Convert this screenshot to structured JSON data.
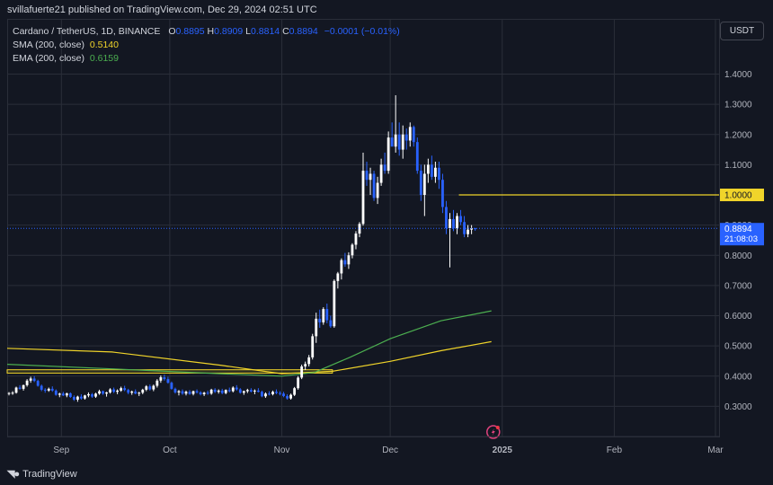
{
  "header": {
    "publisher_line": "svillafuerte21 published on TradingView.com, Dec 29, 2024 02:51 UTC"
  },
  "legend": {
    "symbol": "Cardano / TetherUS, 1D, BINANCE",
    "o_label": "O",
    "o_value": "0.8895",
    "h_label": "H",
    "h_value": "0.8909",
    "l_label": "L",
    "l_value": "0.8814",
    "c_label": "C",
    "c_value": "0.8894",
    "change": "−0.0001 (−0.01%)",
    "sma_label": "SMA (200, close)",
    "sma_value": "0.5140",
    "ema_label": "EMA (200, close)",
    "ema_value": "0.6159"
  },
  "currency_button": "USDT",
  "footer": {
    "brand": "TradingView"
  },
  "colors": {
    "up": "#ffffff",
    "down": "#2962ff",
    "sma": "#f0d42a",
    "ema": "#4caf50",
    "background": "#131722",
    "grid": "#2a2e39",
    "price_tag": "#2962ff",
    "level_tag": "#f0d42a"
  },
  "chart_data": {
    "type": "candlestick",
    "y_axis": {
      "ticks": [
        "1.4000",
        "1.3000",
        "1.2000",
        "1.1000",
        "1.0000",
        "0.9000",
        "0.8000",
        "0.7000",
        "0.6000",
        "0.5000",
        "0.4000",
        "0.3000"
      ],
      "tick_values": [
        1.4,
        1.3,
        1.2,
        1.1,
        1.0,
        0.9,
        0.8,
        0.7,
        0.6,
        0.5,
        0.4,
        0.3
      ],
      "range": [
        0.2,
        1.58
      ]
    },
    "x_axis": {
      "labels": [
        "Sep",
        "Oct",
        "Nov",
        "Dec",
        "2025",
        "Feb",
        "Mar"
      ],
      "label_dates": [
        "2024-09-01",
        "2024-10-01",
        "2024-11-01",
        "2024-12-01",
        "2025-01-01",
        "2025-02-01",
        "2025-03-01"
      ],
      "range": [
        "2024-08-17",
        "2025-03-02"
      ]
    },
    "last_price": {
      "value": 0.8894,
      "label": "0.8894",
      "countdown": "21:08:03"
    },
    "horizontal_level": {
      "value": 1.0,
      "label": "1.0000",
      "from_date": "2024-12-20"
    },
    "range_box": {
      "from_date": "2024-08-17",
      "to_date": "2024-11-15",
      "top": 0.421,
      "bottom": 0.41
    },
    "candles_ohlc_daily_from_2024-08-17": [
      [
        0.342,
        0.347,
        0.336,
        0.344
      ],
      [
        0.344,
        0.35,
        0.338,
        0.345
      ],
      [
        0.345,
        0.365,
        0.342,
        0.362
      ],
      [
        0.362,
        0.37,
        0.355,
        0.358
      ],
      [
        0.358,
        0.372,
        0.352,
        0.37
      ],
      [
        0.37,
        0.39,
        0.365,
        0.385
      ],
      [
        0.385,
        0.398,
        0.378,
        0.392
      ],
      [
        0.392,
        0.4,
        0.38,
        0.384
      ],
      [
        0.384,
        0.388,
        0.365,
        0.368
      ],
      [
        0.368,
        0.372,
        0.35,
        0.355
      ],
      [
        0.355,
        0.36,
        0.345,
        0.352
      ],
      [
        0.352,
        0.362,
        0.348,
        0.358
      ],
      [
        0.358,
        0.366,
        0.348,
        0.352
      ],
      [
        0.352,
        0.356,
        0.335,
        0.338
      ],
      [
        0.338,
        0.345,
        0.33,
        0.342
      ],
      [
        0.342,
        0.348,
        0.334,
        0.336
      ],
      [
        0.336,
        0.345,
        0.33,
        0.343
      ],
      [
        0.343,
        0.346,
        0.328,
        0.331
      ],
      [
        0.331,
        0.336,
        0.318,
        0.322
      ],
      [
        0.322,
        0.335,
        0.315,
        0.332
      ],
      [
        0.332,
        0.34,
        0.322,
        0.326
      ],
      [
        0.326,
        0.338,
        0.322,
        0.336
      ],
      [
        0.336,
        0.346,
        0.33,
        0.34
      ],
      [
        0.34,
        0.344,
        0.328,
        0.332
      ],
      [
        0.332,
        0.345,
        0.328,
        0.342
      ],
      [
        0.342,
        0.355,
        0.338,
        0.35
      ],
      [
        0.35,
        0.352,
        0.338,
        0.342
      ],
      [
        0.342,
        0.348,
        0.332,
        0.346
      ],
      [
        0.346,
        0.36,
        0.342,
        0.356
      ],
      [
        0.356,
        0.362,
        0.344,
        0.348
      ],
      [
        0.348,
        0.356,
        0.34,
        0.352
      ],
      [
        0.352,
        0.365,
        0.348,
        0.36
      ],
      [
        0.36,
        0.368,
        0.35,
        0.354
      ],
      [
        0.354,
        0.358,
        0.34,
        0.345
      ],
      [
        0.345,
        0.352,
        0.338,
        0.349
      ],
      [
        0.349,
        0.356,
        0.34,
        0.342
      ],
      [
        0.342,
        0.348,
        0.334,
        0.345
      ],
      [
        0.345,
        0.358,
        0.34,
        0.355
      ],
      [
        0.355,
        0.37,
        0.35,
        0.366
      ],
      [
        0.366,
        0.372,
        0.352,
        0.356
      ],
      [
        0.356,
        0.372,
        0.35,
        0.368
      ],
      [
        0.368,
        0.39,
        0.362,
        0.385
      ],
      [
        0.385,
        0.402,
        0.378,
        0.396
      ],
      [
        0.396,
        0.405,
        0.385,
        0.39
      ],
      [
        0.39,
        0.398,
        0.375,
        0.378
      ],
      [
        0.378,
        0.382,
        0.355,
        0.358
      ],
      [
        0.358,
        0.362,
        0.342,
        0.346
      ],
      [
        0.346,
        0.354,
        0.336,
        0.35
      ],
      [
        0.35,
        0.356,
        0.338,
        0.342
      ],
      [
        0.342,
        0.352,
        0.336,
        0.348
      ],
      [
        0.348,
        0.354,
        0.338,
        0.341
      ],
      [
        0.341,
        0.352,
        0.336,
        0.35
      ],
      [
        0.35,
        0.356,
        0.342,
        0.346
      ],
      [
        0.346,
        0.35,
        0.336,
        0.34
      ],
      [
        0.34,
        0.348,
        0.334,
        0.345
      ],
      [
        0.345,
        0.352,
        0.338,
        0.342
      ],
      [
        0.342,
        0.358,
        0.338,
        0.355
      ],
      [
        0.355,
        0.36,
        0.344,
        0.348
      ],
      [
        0.348,
        0.356,
        0.342,
        0.352
      ],
      [
        0.352,
        0.358,
        0.34,
        0.344
      ],
      [
        0.344,
        0.356,
        0.34,
        0.354
      ],
      [
        0.354,
        0.362,
        0.346,
        0.35
      ],
      [
        0.35,
        0.366,
        0.346,
        0.362
      ],
      [
        0.362,
        0.37,
        0.352,
        0.356
      ],
      [
        0.356,
        0.36,
        0.342,
        0.345
      ],
      [
        0.345,
        0.352,
        0.338,
        0.35
      ],
      [
        0.35,
        0.358,
        0.344,
        0.354
      ],
      [
        0.354,
        0.36,
        0.346,
        0.349
      ],
      [
        0.349,
        0.356,
        0.34,
        0.352
      ],
      [
        0.352,
        0.36,
        0.346,
        0.348
      ],
      [
        0.348,
        0.352,
        0.33,
        0.333
      ],
      [
        0.333,
        0.346,
        0.328,
        0.342
      ],
      [
        0.342,
        0.35,
        0.336,
        0.34
      ],
      [
        0.34,
        0.352,
        0.336,
        0.348
      ],
      [
        0.348,
        0.356,
        0.34,
        0.344
      ],
      [
        0.344,
        0.35,
        0.336,
        0.342
      ],
      [
        0.342,
        0.348,
        0.33,
        0.334
      ],
      [
        0.334,
        0.34,
        0.322,
        0.326
      ],
      [
        0.326,
        0.342,
        0.322,
        0.338
      ],
      [
        0.338,
        0.364,
        0.334,
        0.36
      ],
      [
        0.36,
        0.4,
        0.355,
        0.395
      ],
      [
        0.395,
        0.438,
        0.39,
        0.432
      ],
      [
        0.432,
        0.448,
        0.42,
        0.44
      ],
      [
        0.44,
        0.47,
        0.432,
        0.462
      ],
      [
        0.462,
        0.54,
        0.455,
        0.532
      ],
      [
        0.532,
        0.61,
        0.51,
        0.59
      ],
      [
        0.59,
        0.62,
        0.56,
        0.578
      ],
      [
        0.578,
        0.628,
        0.57,
        0.622
      ],
      [
        0.622,
        0.64,
        0.575,
        0.585
      ],
      [
        0.585,
        0.6,
        0.56,
        0.565
      ],
      [
        0.565,
        0.72,
        0.56,
        0.715
      ],
      [
        0.715,
        0.745,
        0.69,
        0.74
      ],
      [
        0.74,
        0.79,
        0.72,
        0.784
      ],
      [
        0.784,
        0.808,
        0.762,
        0.77
      ],
      [
        0.77,
        0.81,
        0.755,
        0.8
      ],
      [
        0.8,
        0.84,
        0.79,
        0.835
      ],
      [
        0.835,
        0.88,
        0.82,
        0.872
      ],
      [
        0.872,
        0.91,
        0.86,
        0.904
      ],
      [
        0.904,
        1.14,
        0.898,
        1.08
      ],
      [
        1.08,
        1.11,
        1.03,
        1.05
      ],
      [
        1.05,
        1.09,
        1.0,
        1.07
      ],
      [
        1.07,
        1.08,
        0.98,
        0.99
      ],
      [
        0.99,
        1.06,
        0.97,
        1.04
      ],
      [
        1.04,
        1.12,
        1.03,
        1.1
      ],
      [
        1.1,
        1.14,
        1.07,
        1.08
      ],
      [
        1.08,
        1.21,
        1.07,
        1.19
      ],
      [
        1.19,
        1.24,
        1.17,
        1.16
      ],
      [
        1.16,
        1.33,
        1.14,
        1.2
      ],
      [
        1.2,
        1.24,
        1.13,
        1.15
      ],
      [
        1.15,
        1.23,
        1.12,
        1.2
      ],
      [
        1.2,
        1.22,
        1.15,
        1.18
      ],
      [
        1.18,
        1.24,
        1.16,
        1.225
      ],
      [
        1.225,
        1.23,
        1.16,
        1.175
      ],
      [
        1.175,
        1.19,
        1.07,
        1.08
      ],
      [
        1.08,
        1.1,
        0.98,
        1.0
      ],
      [
        1.0,
        1.1,
        0.93,
        1.07
      ],
      [
        1.07,
        1.12,
        1.04,
        1.1
      ],
      [
        1.1,
        1.13,
        1.05,
        1.06
      ],
      [
        1.06,
        1.11,
        1.04,
        1.09
      ],
      [
        1.09,
        1.11,
        1.02,
        1.05
      ],
      [
        1.05,
        1.07,
        0.94,
        0.96
      ],
      [
        0.96,
        0.98,
        0.87,
        0.89
      ],
      [
        0.89,
        0.94,
        0.76,
        0.92
      ],
      [
        0.92,
        0.95,
        0.88,
        0.89
      ],
      [
        0.89,
        0.94,
        0.87,
        0.93
      ],
      [
        0.93,
        0.95,
        0.9,
        0.91
      ],
      [
        0.91,
        0.93,
        0.86,
        0.87
      ],
      [
        0.87,
        0.9,
        0.86,
        0.885
      ],
      [
        0.885,
        0.9,
        0.87,
        0.8895
      ],
      [
        0.8895,
        0.8909,
        0.8814,
        0.8894
      ]
    ],
    "series": [
      {
        "name": "SMA (200, close)",
        "value": 0.514,
        "points": [
          [
            "2024-08-17",
            0.492
          ],
          [
            "2024-09-15",
            0.48
          ],
          [
            "2024-10-15",
            0.436
          ],
          [
            "2024-11-01",
            0.408
          ],
          [
            "2024-11-15",
            0.416
          ],
          [
            "2024-12-01",
            0.449
          ],
          [
            "2024-12-15",
            0.484
          ],
          [
            "2024-12-29",
            0.514
          ]
        ]
      },
      {
        "name": "EMA (200, close)",
        "value": 0.6159,
        "points": [
          [
            "2024-08-17",
            0.439
          ],
          [
            "2024-09-15",
            0.424
          ],
          [
            "2024-10-15",
            0.408
          ],
          [
            "2024-11-01",
            0.4
          ],
          [
            "2024-11-10",
            0.412
          ],
          [
            "2024-11-20",
            0.463
          ],
          [
            "2024-12-01",
            0.524
          ],
          [
            "2024-12-15",
            0.583
          ],
          [
            "2024-12-29",
            0.616
          ]
        ]
      }
    ]
  }
}
